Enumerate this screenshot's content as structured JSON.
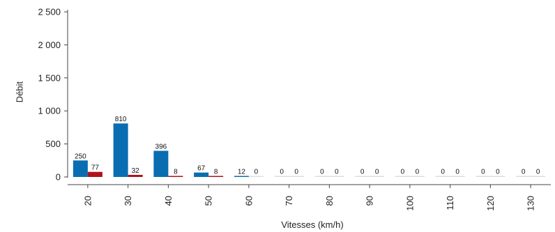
{
  "chart_data": {
    "type": "bar",
    "title": "",
    "xlabel": "Vitesses (km/h)",
    "ylabel": "Débit",
    "categories": [
      "20",
      "30",
      "40",
      "50",
      "60",
      "70",
      "80",
      "90",
      "100",
      "110",
      "120",
      "130"
    ],
    "series": [
      {
        "color": "#0a6db1",
        "values": [
          250,
          810,
          396,
          67,
          12,
          0,
          0,
          0,
          0,
          0,
          0,
          0
        ]
      },
      {
        "color": "#b0121b",
        "values": [
          77,
          32,
          8,
          8,
          0,
          0,
          0,
          0,
          0,
          0,
          0,
          0
        ]
      }
    ],
    "ylim": [
      0,
      2500
    ],
    "yticks": [
      0,
      500,
      1000,
      1500,
      2000,
      2500
    ],
    "ytick_labels": [
      "0",
      "500",
      "1 000",
      "1 500",
      "2 000",
      "2 500"
    ],
    "grid": false,
    "legend": "none"
  }
}
